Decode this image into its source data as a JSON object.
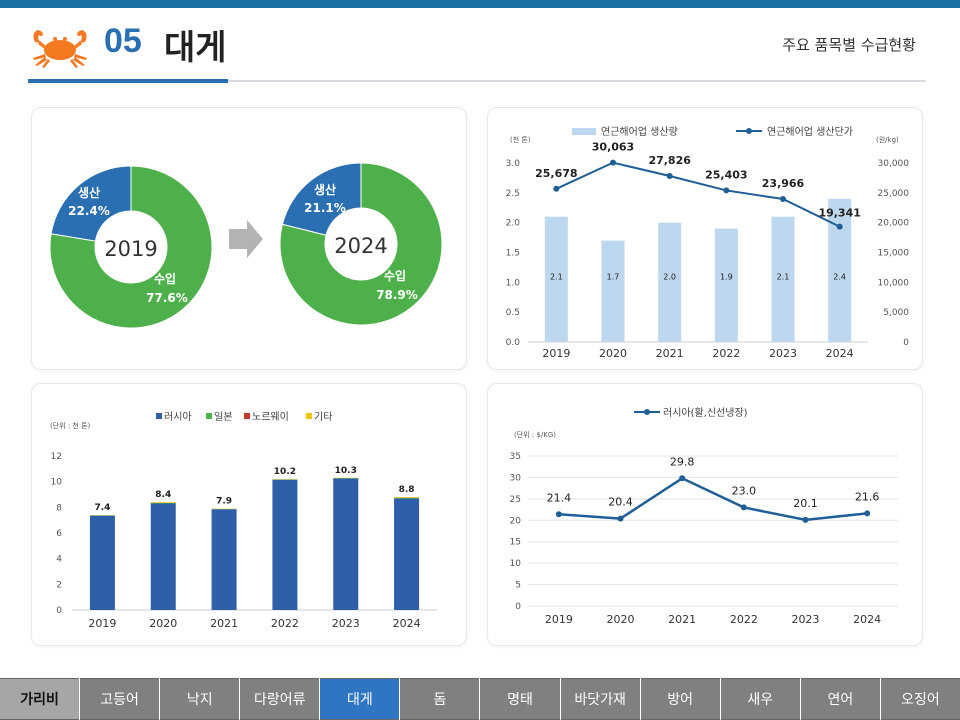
{
  "header": {
    "number": "05",
    "title": "대게",
    "subtitle": "주요 품목별 수급현황"
  },
  "colors": {
    "production": "#2a6fb2",
    "import": "#4db04a",
    "bar_light": "#bdd7ee",
    "line_dark": "#1f5f96",
    "russia_bar": "#2e5fa8",
    "nav_active": "#2e75c2"
  },
  "chart_data": [
    {
      "type": "pie",
      "id": "share-donuts",
      "donuts": [
        {
          "year": "2019",
          "slices": [
            {
              "label": "생산",
              "value": 22.4,
              "display": "22.4%"
            },
            {
              "label": "수입",
              "value": 77.6,
              "display": "77.6%"
            }
          ]
        },
        {
          "year": "2024",
          "slices": [
            {
              "label": "생산",
              "value": 21.1,
              "display": "21.1%"
            },
            {
              "label": "수입",
              "value": 78.9,
              "display": "78.9%"
            }
          ]
        }
      ]
    },
    {
      "type": "bar",
      "id": "production-price",
      "legend": [
        "연근해어업 생산량",
        "연근해어업 생산단가"
      ],
      "y_left_unit": "(천 톤)",
      "y_right_unit": "(원/kg)",
      "categories": [
        "2019",
        "2020",
        "2021",
        "2022",
        "2023",
        "2024"
      ],
      "series": [
        {
          "name": "연근해어업 생산량",
          "kind": "bar",
          "values": [
            2.1,
            1.7,
            2.0,
            1.9,
            2.1,
            2.4
          ],
          "labels": [
            "2.1",
            "1.7",
            "2.0",
            "1.9",
            "2.1",
            "2.4"
          ]
        },
        {
          "name": "연근해어업 생산단가",
          "kind": "line",
          "values": [
            25678,
            30063,
            27826,
            25403,
            23966,
            19341
          ],
          "labels": [
            "25,678",
            "30,063",
            "27,826",
            "25,403",
            "23,966",
            "19,341"
          ]
        }
      ],
      "ylim_left": [
        0,
        3.0
      ],
      "yticks_left": [
        "0.0",
        "0.5",
        "1.0",
        "1.5",
        "2.0",
        "2.5",
        "3.0"
      ],
      "ylim_right": [
        0,
        30000
      ],
      "yticks_right": [
        "0",
        "5,000",
        "10,000",
        "15,000",
        "20,000",
        "25,000",
        "30,000"
      ]
    },
    {
      "type": "bar",
      "id": "import-by-country",
      "stacked": true,
      "legend": [
        "러시아",
        "일본",
        "노르웨이",
        "기타"
      ],
      "y_unit": "(단위 : 천 톤)",
      "categories": [
        "2019",
        "2020",
        "2021",
        "2022",
        "2023",
        "2024"
      ],
      "series": [
        {
          "name": "러시아",
          "values": [
            7.35,
            8.3,
            7.85,
            10.15,
            10.25,
            8.7
          ]
        },
        {
          "name": "일본",
          "values": [
            0.03,
            0.05,
            0.03,
            0.03,
            0.03,
            0.05
          ]
        },
        {
          "name": "노르웨이",
          "values": [
            0.0,
            0.0,
            0.0,
            0.0,
            0.0,
            0.0
          ]
        },
        {
          "name": "기타",
          "values": [
            0.02,
            0.05,
            0.02,
            0.02,
            0.02,
            0.05
          ]
        }
      ],
      "totals": [
        "7.4",
        "8.4",
        "7.9",
        "10.2",
        "10.3",
        "8.8"
      ],
      "total_values": [
        7.4,
        8.4,
        7.9,
        10.2,
        10.3,
        8.8
      ],
      "ylim": [
        0,
        12
      ],
      "yticks": [
        "0",
        "2",
        "4",
        "6",
        "8",
        "10",
        "12"
      ]
    },
    {
      "type": "line",
      "id": "russia-price",
      "legend": [
        "러시아(활,신선냉장)"
      ],
      "y_unit": "(단위 : $/KG)",
      "categories": [
        "2019",
        "2020",
        "2021",
        "2022",
        "2023",
        "2024"
      ],
      "values": [
        21.4,
        20.4,
        29.8,
        23.0,
        20.1,
        21.6
      ],
      "labels": [
        "21.4",
        "20.4",
        "29.8",
        "23.0",
        "20.1",
        "21.6"
      ],
      "ylim": [
        0,
        35
      ],
      "yticks": [
        "0",
        "5",
        "10",
        "15",
        "20",
        "25",
        "30",
        "35"
      ]
    }
  ],
  "nav": {
    "items": [
      "가리비",
      "고등어",
      "낙지",
      "다랑어류",
      "대게",
      "돔",
      "명태",
      "바닷가재",
      "방어",
      "새우",
      "연어",
      "오징어"
    ],
    "active": "대게"
  }
}
